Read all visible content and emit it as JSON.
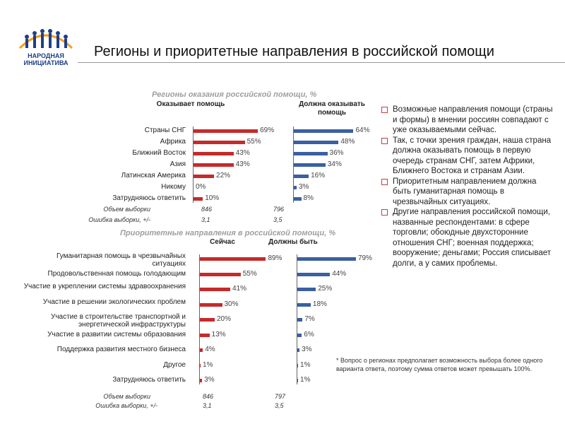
{
  "header": {
    "logo_line1": "НАРОДНАЯ",
    "logo_line2": "ИНИЦИАТИВА",
    "title": "Регионы и приоритетные направления в российской помощи",
    "logo_colors": [
      "#f4a020",
      "#1f3e8a"
    ]
  },
  "colors": {
    "current": "#c62a2a",
    "desired": "#3a5fa3",
    "section_title": "#9e9e9e"
  },
  "chart_data": [
    {
      "type": "bar",
      "orientation": "horizontal",
      "title": "Регионы оказания российской помощи, %",
      "categories": [
        "Страны СНГ",
        "Африка",
        "Ближний Восток",
        "Азия",
        "Латинская Америка",
        "Никому",
        "Затрудняюсь ответить"
      ],
      "series": [
        {
          "name": "Оказывает помощь",
          "values": [
            69,
            55,
            43,
            43,
            22,
            0,
            10
          ],
          "labels": [
            "69%",
            "55%",
            "43%",
            "43%",
            "22%",
            "0%",
            "10%"
          ]
        },
        {
          "name": "Должна оказывать помощь",
          "values": [
            64,
            48,
            36,
            34,
            16,
            3,
            8
          ],
          "labels": [
            "64%",
            "48%",
            "36%",
            "34%",
            "16%",
            "3%",
            "8%"
          ]
        }
      ],
      "sample": {
        "size_label": "Объем выборки",
        "size_values": [
          "846",
          "796"
        ],
        "error_label": "Ошибка выборки, +/-",
        "error_values": [
          "3,1",
          "3,5"
        ]
      }
    },
    {
      "type": "bar",
      "orientation": "horizontal",
      "title": "Приоритетные направления в российской помощи, %",
      "categories": [
        "Гуманитарная помощь в чрезвычайных ситуациях",
        "Продовольственная помощь голодающим",
        "Участие в укреплении системы здравоохранения",
        "Участие в решении экологических проблем",
        "Участие в строительстве транспортной и энергетической инфраструктуры",
        "Участие в развитии системы образования",
        "Поддержка развития местного бизнеса",
        "Другое",
        "Затрудняюсь ответить"
      ],
      "series": [
        {
          "name": "Сейчас",
          "values": [
            89,
            55,
            41,
            30,
            20,
            13,
            4,
            1,
            3
          ],
          "labels": [
            "89%",
            "55%",
            "41%",
            "30%",
            "20%",
            "13%",
            "4%",
            "1%",
            "3%"
          ]
        },
        {
          "name": "Должны быть",
          "values": [
            79,
            44,
            25,
            18,
            7,
            6,
            3,
            1,
            1
          ],
          "labels": [
            "79%",
            "44%",
            "25%",
            "18%",
            "7%",
            "6%",
            "3%",
            "1%",
            "1%"
          ]
        }
      ],
      "sample": {
        "size_label": "Объем выборки",
        "size_values": [
          "846",
          "797"
        ],
        "error_label": "Ошибка выборки, +/-",
        "error_values": [
          "3,1",
          "3,5"
        ]
      }
    }
  ],
  "notes": [
    "Возможные направления помощи (страны и формы) в мнении россиян совпадают с уже оказываемыми сейчас.",
    "Так, с точки зрения граждан, наша страна должна оказывать помощь в первую очередь странам СНГ, затем Африки, Ближнего Востока и странам Азии.",
    "Приоритетным направлением должна быть гуманитарная помощь в чрезвычайных ситуациях.",
    "Другие направления российской помощи, названные респондентами: в сфере торговли; обоюдные двухсторонние отношения СНГ; военная поддержка; вооружение; деньгами; Россия списывает долги, а у самих проблемы."
  ],
  "footnote": "* Вопрос о регионах предполагает возможность выбора более одного варианта ответа, поэтому сумма ответов может превышать 100%."
}
